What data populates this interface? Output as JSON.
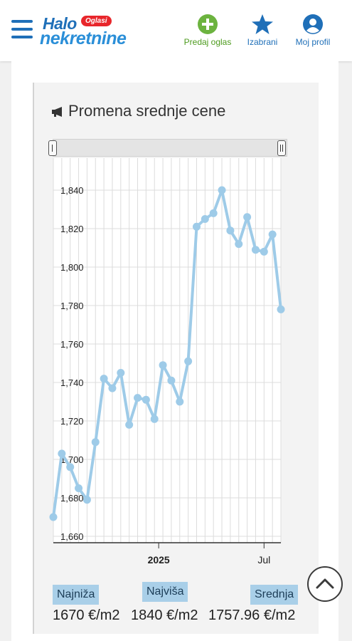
{
  "header": {
    "logo_top": "Halo",
    "logo_badge": "Oglasi",
    "logo_bottom": "nekretnine",
    "nav": [
      {
        "label": "Predaj oglas",
        "icon": "plus-circle-icon",
        "color": "#6cb33f"
      },
      {
        "label": "Izabrani",
        "icon": "star-icon",
        "color": "#1f6fb8"
      },
      {
        "label": "Moj profil",
        "icon": "user-profile-icon",
        "color": "#1f6fb8"
      }
    ]
  },
  "panel": {
    "title": "Promena srednje cene",
    "title_icon": "megaphone-icon"
  },
  "chart_data": {
    "type": "line",
    "title": "Promena srednje cene",
    "xlabel": "",
    "ylabel": "",
    "ylim": [
      1660,
      1840
    ],
    "y_ticks": [
      "1,660",
      "1,680",
      "1,700",
      "1,720",
      "1,740",
      "1,760",
      "1,780",
      "1,800",
      "1,820",
      "1,840"
    ],
    "x_tick_labels": [
      {
        "label": "2025",
        "bold": true,
        "index": 12.5
      },
      {
        "label": "Jul",
        "bold": false,
        "index": 25
      }
    ],
    "grid": true,
    "line_color": "#9ecbe8",
    "series": [
      {
        "values": [
          1670,
          1703,
          1696,
          1685,
          1679,
          1709,
          1742,
          1737,
          1745,
          1718,
          1732,
          1731,
          1721,
          1749,
          1741,
          1730,
          1751,
          1821,
          1825,
          1828,
          1840,
          1819,
          1812,
          1826,
          1809,
          1808,
          1817,
          1778
        ]
      }
    ]
  },
  "stats": {
    "min_label": "Najniža",
    "min_value": "1670 €/m2",
    "max_label": "Najviša",
    "max_value": "1840 €/m2",
    "avg_label": "Srednja",
    "avg_value": "1757.96 €/m2"
  },
  "scroll_top_icon": "chevron-up-icon"
}
